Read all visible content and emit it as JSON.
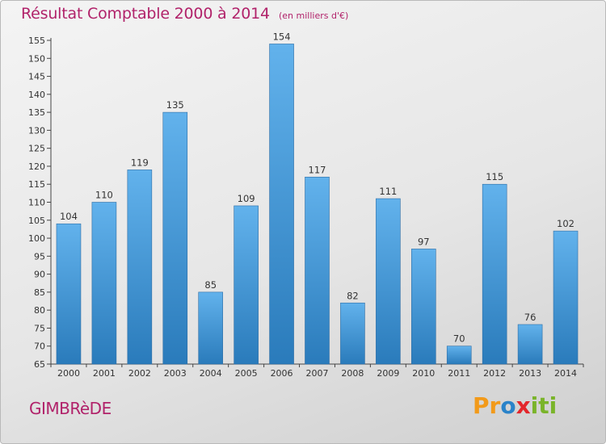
{
  "header": {
    "title": "Résultat Comptable 2000 à 2014",
    "subtitle": "(en milliers d'€)"
  },
  "footer": {
    "place_name": "GIMBRèDE",
    "logo_text": "Proxiti"
  },
  "colors": {
    "title": "#b1226a",
    "bar_top": "#62b2ec",
    "bar_bottom": "#2a7bbb"
  },
  "chart_data": {
    "type": "bar",
    "title": "Résultat Comptable 2000 à 2014",
    "subtitle": "(en milliers d'€)",
    "xlabel": "",
    "ylabel": "",
    "categories": [
      "2000",
      "2001",
      "2002",
      "2003",
      "2004",
      "2005",
      "2006",
      "2007",
      "2008",
      "2009",
      "2010",
      "2011",
      "2012",
      "2013",
      "2014"
    ],
    "values": [
      104,
      110,
      119,
      135,
      85,
      109,
      154,
      117,
      82,
      111,
      97,
      70,
      115,
      76,
      102
    ],
    "ylim": [
      65,
      155
    ],
    "yticks": [
      65,
      70,
      75,
      80,
      85,
      90,
      95,
      100,
      105,
      110,
      115,
      120,
      125,
      130,
      135,
      140,
      145,
      150,
      155
    ],
    "grid": false,
    "legend": "none",
    "data_labels": true
  }
}
